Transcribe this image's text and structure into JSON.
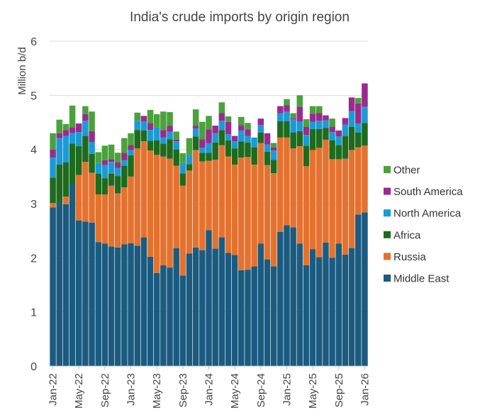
{
  "chart_data": {
    "type": "bar",
    "stacked": true,
    "title": "India's crude imports by origin region",
    "xlabel": "",
    "ylabel": "Million b/d",
    "ylim": [
      0,
      6
    ],
    "yticks": [
      "0",
      "1",
      "2",
      "3",
      "4",
      "5",
      "6"
    ],
    "grid": true,
    "legend_position": "right",
    "categories": [
      "Jan-22",
      "Feb-22",
      "Mar-22",
      "Apr-22",
      "May-22",
      "Jun-22",
      "Jul-22",
      "Aug-22",
      "Sep-22",
      "Oct-22",
      "Nov-22",
      "Dec-22",
      "Jan-23",
      "Feb-23",
      "Mar-23",
      "Apr-23",
      "May-23",
      "Jun-23",
      "Jul-23",
      "Aug-23",
      "Sep-23",
      "Oct-23",
      "Nov-23",
      "Dec-23",
      "Jan-24",
      "Feb-24",
      "Mar-24",
      "Apr-24",
      "May-24",
      "Jun-24",
      "Jul-24",
      "Aug-24",
      "Sep-24",
      "Oct-24",
      "Nov-24",
      "Dec-24",
      "Jan-25",
      "Feb-25",
      "Mar-25",
      "Apr-25",
      "May-25",
      "Jun-25",
      "Jul-25",
      "Aug-25",
      "Sep-25",
      "Oct-25",
      "Nov-25",
      "Dec-25",
      "Jan-26"
    ],
    "x_tick_labels": [
      "Jan-22",
      "May-22",
      "Sep-22",
      "Jan-23",
      "May-23",
      "Sep-23",
      "Jan-24",
      "May-24",
      "Sep-24",
      "Jan-25",
      "May-25",
      "Sep-25",
      "Jan-26"
    ],
    "series": [
      {
        "name": "Middle East",
        "color": "#1b5b80",
        "values": [
          2.93,
          3.02,
          2.99,
          3.38,
          2.69,
          2.67,
          2.65,
          2.29,
          2.26,
          2.21,
          2.19,
          2.25,
          2.27,
          2.22,
          2.38,
          2.02,
          1.72,
          1.86,
          1.82,
          2.18,
          1.67,
          2.08,
          2.19,
          2.14,
          2.51,
          2.17,
          2.38,
          2.09,
          2.05,
          1.77,
          1.78,
          1.84,
          2.26,
          1.97,
          1.84,
          2.48,
          2.6,
          2.56,
          2.26,
          1.86,
          2.16,
          2.01,
          2.28,
          2.0,
          2.26,
          2.06,
          2.18,
          2.8,
          2.84
        ]
      },
      {
        "name": "Russia",
        "color": "#e4722f",
        "values": [
          0.08,
          0.0,
          0.14,
          0.0,
          0.84,
          1.1,
          0.92,
          0.88,
          0.91,
          1.12,
          1.0,
          1.05,
          1.23,
          1.8,
          1.77,
          1.96,
          2.18,
          2.01,
          2.01,
          1.52,
          1.66,
          1.53,
          1.8,
          1.64,
          1.28,
          1.64,
          1.7,
          1.78,
          1.67,
          2.08,
          2.08,
          1.88,
          1.86,
          1.74,
          1.72,
          1.74,
          1.62,
          1.46,
          1.8,
          1.83,
          1.83,
          2.02,
          1.9,
          1.82,
          1.56,
          1.77,
          1.81,
          1.24,
          1.23
        ]
      },
      {
        "name": "Africa",
        "color": "#1e6b1d",
        "values": [
          0.47,
          0.7,
          0.63,
          0.73,
          0.53,
          0.48,
          0.35,
          0.38,
          0.3,
          0.22,
          0.32,
          0.4,
          0.39,
          0.34,
          0.2,
          0.18,
          0.27,
          0.24,
          0.36,
          0.3,
          0.23,
          0.12,
          0.25,
          0.16,
          0.15,
          0.32,
          0.28,
          0.3,
          0.3,
          0.3,
          0.27,
          0.32,
          0.19,
          0.25,
          0.25,
          0.3,
          0.3,
          0.29,
          0.28,
          0.38,
          0.39,
          0.35,
          0.22,
          0.35,
          0.26,
          0.42,
          0.43,
          0.27,
          0.42
        ]
      },
      {
        "name": "North America",
        "color": "#1b9ad6",
        "values": [
          0.37,
          0.49,
          0.49,
          0.2,
          0.26,
          0.28,
          0.22,
          0.2,
          0.24,
          0.22,
          0.15,
          0.1,
          0.1,
          0.17,
          0.17,
          0.2,
          0.24,
          0.11,
          0.14,
          0.15,
          0.19,
          0.17,
          0.15,
          0.09,
          0.18,
          0.17,
          0.17,
          0.11,
          0.13,
          0.2,
          0.12,
          0.18,
          0.14,
          0.13,
          0.17,
          0.15,
          0.18,
          0.25,
          0.18,
          0.2,
          0.13,
          0.15,
          0.14,
          0.15,
          0.16,
          0.21,
          0.29,
          0.17,
          0.3
        ]
      },
      {
        "name": "South America",
        "color": "#9b2a8e",
        "values": [
          0.15,
          0.09,
          0.11,
          0.1,
          0.16,
          0.12,
          0.2,
          0.0,
          0.09,
          0.05,
          0.1,
          0.14,
          0.09,
          0.0,
          0.1,
          0.13,
          0.0,
          0.14,
          0.11,
          0.03,
          0.0,
          0.0,
          0.05,
          0.16,
          0.25,
          0.14,
          0.14,
          0.23,
          0.1,
          0.1,
          0.12,
          0.0,
          0.12,
          0.21,
          0.06,
          0.13,
          0.12,
          0.02,
          0.27,
          0.15,
          0.15,
          0.14,
          0.09,
          0.1,
          0.11,
          0.12,
          0.25,
          0.37,
          0.43
        ]
      },
      {
        "name": "Other",
        "color": "#4aa23b",
        "values": [
          0.3,
          0.25,
          0.11,
          0.4,
          0.0,
          0.15,
          0.36,
          0.2,
          0.27,
          0.27,
          0.18,
          0.27,
          0.22,
          0.15,
          0.0,
          0.24,
          0.24,
          0.34,
          0.25,
          0.15,
          0.18,
          0.31,
          0.3,
          0.32,
          0.25,
          0.0,
          0.2,
          0.1,
          0.0,
          0.15,
          0.12,
          0.0,
          0.0,
          0.0,
          0.08,
          0.0,
          0.11,
          0.09,
          0.21,
          0.14,
          0.14,
          0.13,
          0.0,
          0.15,
          0.0,
          0.0,
          0.0,
          0.1,
          0.0
        ]
      }
    ],
    "legend_order": [
      "Other",
      "South America",
      "North America",
      "Africa",
      "Russia",
      "Middle East"
    ]
  }
}
